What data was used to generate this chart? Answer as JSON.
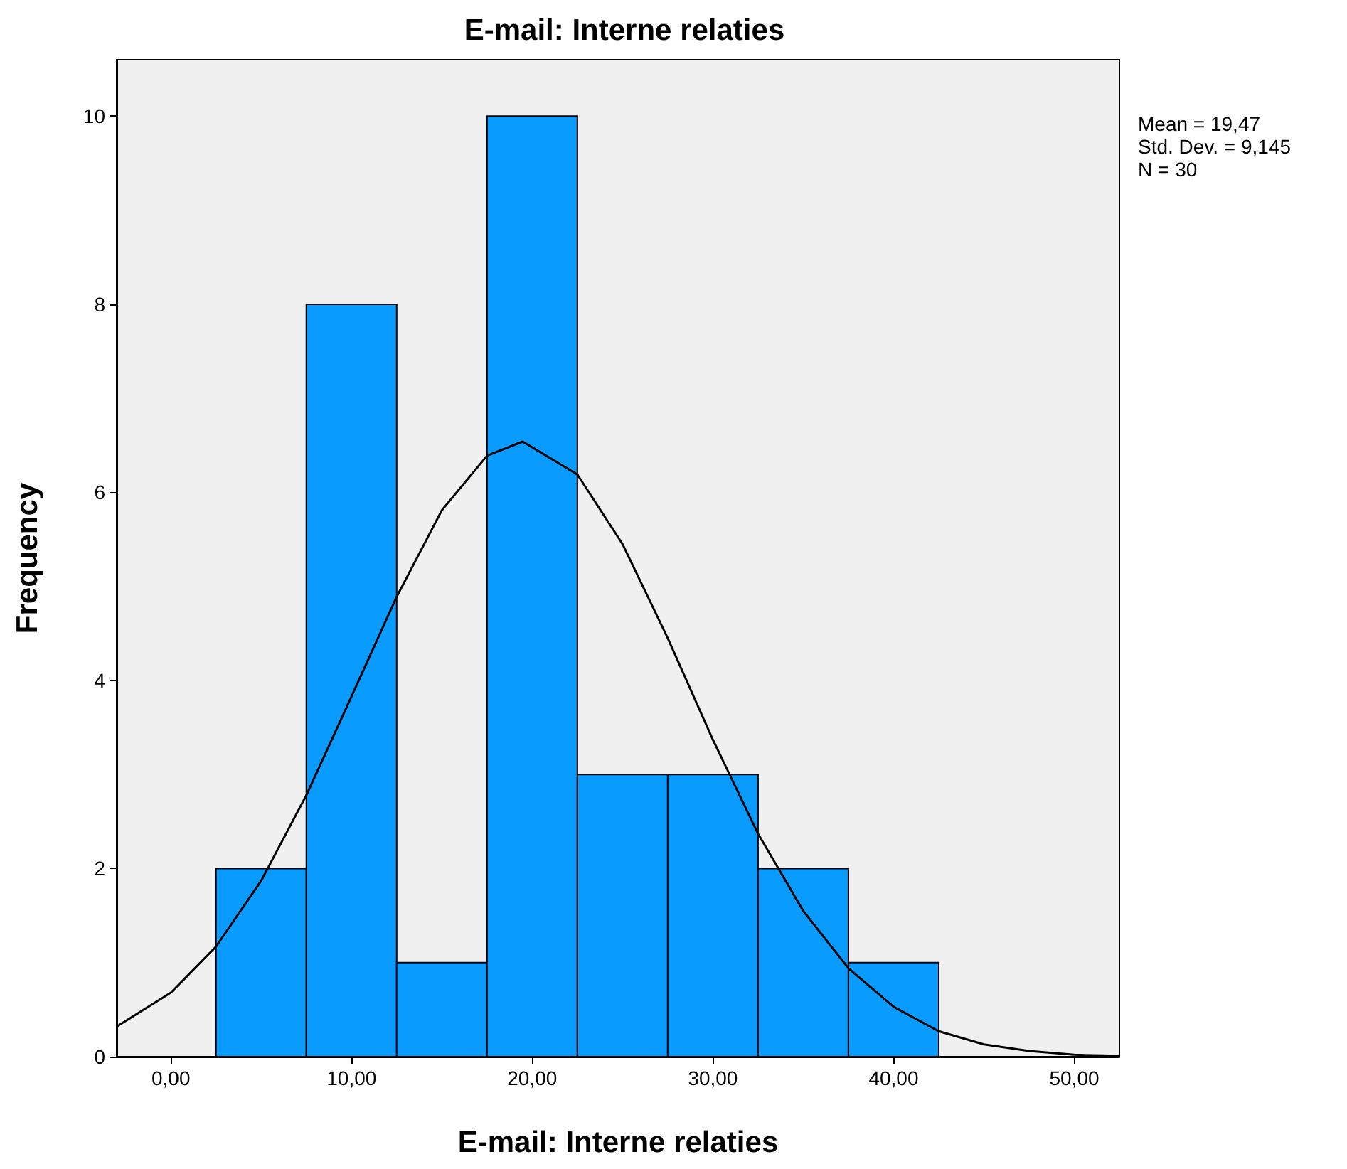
{
  "chart_data": {
    "type": "histogram",
    "title": "E-mail: Interne relaties",
    "xlabel": "E-mail: Interne relaties",
    "ylabel": "Frequency",
    "series": [
      {
        "bins": [
          2.5,
          7.5,
          12.5,
          17.5,
          22.5,
          27.5,
          32.5,
          37.5,
          42.5
        ],
        "values": [
          2,
          8,
          1,
          10,
          3,
          3,
          2,
          1
        ],
        "color": "#0a9bff"
      },
      {
        "type": "line",
        "color": "#000000",
        "x": [
          -3,
          0,
          2.5,
          5,
          7.5,
          10,
          12.5,
          15,
          17.5,
          19.47,
          22.5,
          25,
          27.5,
          30,
          32.5,
          35,
          37.5,
          40,
          42.5,
          45,
          47.5,
          50,
          52.5
        ],
        "values": [
          0.32,
          0.68,
          1.17,
          1.87,
          2.78,
          3.83,
          4.89,
          5.81,
          6.39,
          6.54,
          6.19,
          5.45,
          4.45,
          3.37,
          2.37,
          1.55,
          0.94,
          0.53,
          0.27,
          0.13,
          0.06,
          0.02,
          0.01
        ]
      }
    ],
    "xlim": [
      -3,
      52.5
    ],
    "ylim": [
      0,
      10.6
    ],
    "xticks": [
      {
        "value": 0,
        "label": "0,00"
      },
      {
        "value": 10,
        "label": "10,00"
      },
      {
        "value": 20,
        "label": "20,00"
      },
      {
        "value": 30,
        "label": "30,00"
      },
      {
        "value": 40,
        "label": "40,00"
      },
      {
        "value": 50,
        "label": "50,00"
      }
    ],
    "yticks": [
      0,
      2,
      4,
      6,
      8,
      10
    ],
    "annotations": [
      "Mean = 19,47",
      "Std. Dev. = 9,145",
      "N = 30"
    ],
    "marker": "none"
  }
}
